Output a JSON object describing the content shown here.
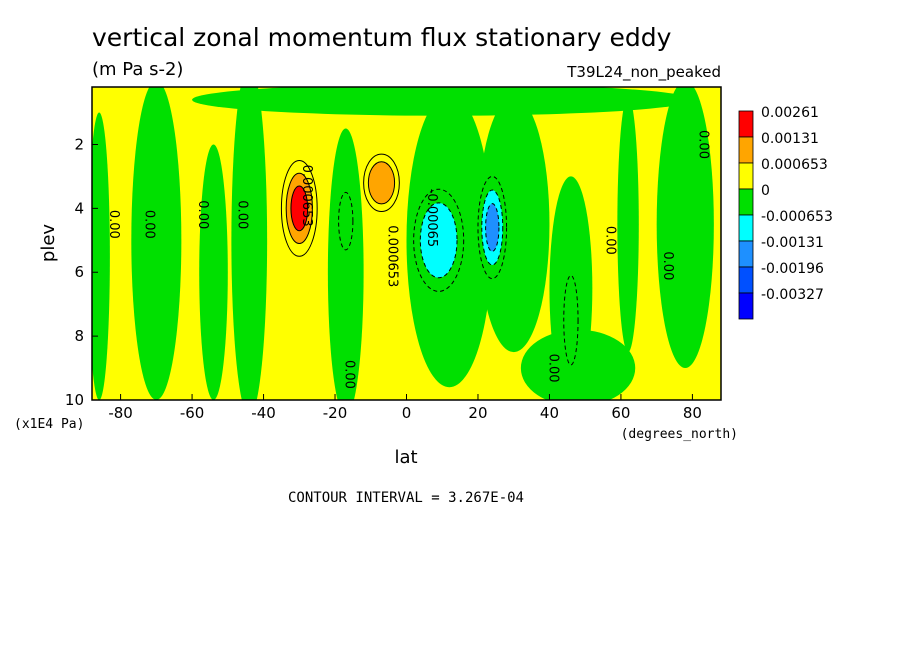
{
  "chart_data": {
    "type": "heatmap",
    "title": "vertical zonal momentum flux stationary eddy",
    "subtitle": "(m Pa s-2)",
    "run_label": "T39L24_non_peaked",
    "xlabel": "lat",
    "ylabel": "plev",
    "x_units": "(degrees_north)",
    "y_units": "(x1E4 Pa)",
    "xlim": [
      -88,
      88
    ],
    "ylim": [
      10,
      0.2
    ],
    "x_ticks": [
      -80,
      -60,
      -40,
      -20,
      0,
      20,
      40,
      60,
      80
    ],
    "x_tick_labels": [
      "-80",
      "-60",
      "-40",
      "-20",
      "0",
      "20",
      "40",
      "60",
      "80"
    ],
    "y_ticks": [
      2,
      4,
      6,
      8,
      10
    ],
    "y_tick_labels": [
      "2",
      "4",
      "6",
      "8",
      "10"
    ],
    "footer": "CONTOUR INTERVAL = 3.267E-04",
    "legend_position": "right",
    "legend": [
      {
        "label": "0.00261",
        "color": "#ff0000"
      },
      {
        "label": "0.00131",
        "color": "#ffa500"
      },
      {
        "label": "0.000653",
        "color": "#ffff00"
      },
      {
        "label": "0",
        "color": "#00e000"
      },
      {
        "label": "-0.000653",
        "color": "#00ffff"
      },
      {
        "label": "-0.00131",
        "color": "#1e90ff"
      },
      {
        "label": "-0.00196",
        "color": "#0050ff"
      },
      {
        "label": "-0.00327",
        "color": "#0000ff"
      }
    ],
    "contour_labels": [
      {
        "text": "0.00",
        "lat": -83,
        "plev": 4.5,
        "angle": 90
      },
      {
        "text": "0.00",
        "lat": -73,
        "plev": 4.5,
        "angle": 90
      },
      {
        "text": "0.00",
        "lat": -58,
        "plev": 4.2,
        "angle": 90
      },
      {
        "text": "0.00",
        "lat": -47,
        "plev": 4.2,
        "angle": 90
      },
      {
        "text": "0.000653",
        "lat": -29,
        "plev": 3.6,
        "angle": 90
      },
      {
        "text": "0.00",
        "lat": -17,
        "plev": 9.2,
        "angle": 90
      },
      {
        "text": "0.000653",
        "lat": -5,
        "plev": 5.5,
        "angle": 90
      },
      {
        "text": "-0.00065",
        "lat": 6,
        "plev": 4.3,
        "angle": 90
      },
      {
        "text": "0.00",
        "lat": 40,
        "plev": 9.0,
        "angle": 90
      },
      {
        "text": "0.00",
        "lat": 56,
        "plev": 5.0,
        "angle": 90
      },
      {
        "text": "0.00",
        "lat": 72,
        "plev": 5.8,
        "angle": 90
      },
      {
        "text": "0.00",
        "lat": 82,
        "plev": 2.0,
        "angle": 90
      }
    ],
    "features": [
      {
        "sign": "pos",
        "lat": -30,
        "plev": 4.0,
        "value": 0.003,
        "lat_width": 5,
        "plev_width": 1.5
      },
      {
        "sign": "pos",
        "lat": -7,
        "plev": 3.2,
        "value": 0.0022,
        "lat_width": 5,
        "plev_width": 0.9
      },
      {
        "sign": "neg",
        "lat": -17,
        "plev": 4.4,
        "value": -0.0009,
        "lat_width": 2,
        "plev_width": 0.9
      },
      {
        "sign": "neg",
        "lat": 9,
        "plev": 5.0,
        "value": -0.0015,
        "lat_width": 7,
        "plev_width": 1.6
      },
      {
        "sign": "neg",
        "lat": 24,
        "plev": 4.6,
        "value": -0.0022,
        "lat_width": 4,
        "plev_width": 1.6
      },
      {
        "sign": "neg",
        "lat": 46,
        "plev": 7.5,
        "value": -0.0007,
        "lat_width": 2,
        "plev_width": 1.4
      },
      {
        "sign": "neg",
        "lat": -84,
        "plev": 4.5,
        "value": -0.0004,
        "lat_width": 2,
        "plev_width": 2.5
      },
      {
        "sign": "neg",
        "lat": -64,
        "plev": 5.5,
        "value": -0.0004,
        "lat_width": 2,
        "plev_width": 2.0
      },
      {
        "sign": "neg",
        "lat": 78,
        "plev": 5.0,
        "value": -0.0004,
        "lat_width": 3,
        "plev_width": 3.0
      }
    ]
  }
}
